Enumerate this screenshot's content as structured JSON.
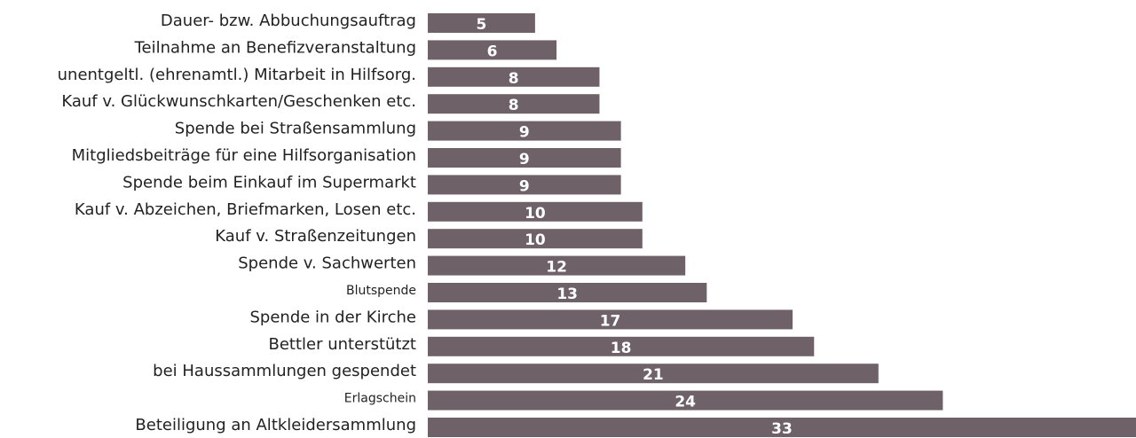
{
  "chart_data": {
    "type": "bar",
    "orientation": "horizontal",
    "categories": [
      "Dauer- bzw. Abbuchungsauftrag",
      "Teilnahme an Benefizveranstaltung",
      "unentgeltl. (ehrenamtl.) Mitarbeit in Hilfsorg.",
      "Kauf v. Glückwunschkarten/Geschenken etc.",
      "Spende bei Straßensammlung",
      "Mitgliedsbeiträge für eine Hilfsorganisation",
      "Spende beim Einkauf im Supermarkt",
      "Kauf v. Abzeichen, Briefmarken, Losen etc.",
      "Kauf v. Straßenzeitungen",
      "Spende v. Sachwerten",
      "Blutspende",
      "Spende in der Kirche",
      "Bettler unterstützt",
      "bei Haussammlungen gespendet",
      "Erlagschein",
      "Beteiligung an Altkleidersammlung"
    ],
    "values": [
      5,
      6,
      8,
      8,
      9,
      9,
      9,
      10,
      10,
      12,
      13,
      17,
      18,
      21,
      24,
      33
    ],
    "color": "#6e6168",
    "xlim": [
      0,
      33
    ]
  }
}
